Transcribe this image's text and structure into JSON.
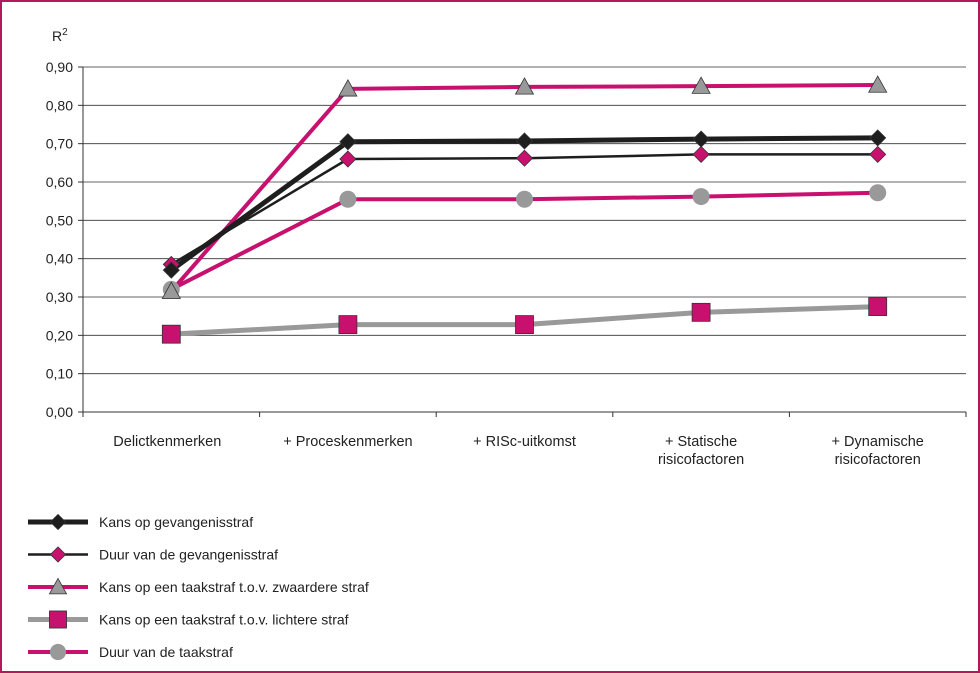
{
  "chart_data": {
    "type": "line",
    "ylabel": "R",
    "ylabel_sup": "2",
    "ylim": [
      0,
      0.9
    ],
    "yticks": [
      "0,00",
      "0,10",
      "0,20",
      "0,30",
      "0,40",
      "0,50",
      "0,60",
      "0,70",
      "0,80",
      "0,90"
    ],
    "categories": [
      [
        "Delictkenmerken"
      ],
      [
        "+ Proceskenmerken"
      ],
      [
        "+ RISc-uitkomst"
      ],
      [
        "+ Statische",
        "risicofactoren"
      ],
      [
        "+ Dynamische",
        "risicofactoren"
      ]
    ],
    "legend_position": "bottom",
    "grid": true,
    "series": [
      {
        "name": "Kans op gevangenisstraf",
        "values": [
          0.37,
          0.705,
          0.707,
          0.712,
          0.715
        ],
        "line_color": "#1e1e1e",
        "marker": "diamond",
        "marker_color": "#1e1e1e",
        "line_width": 5
      },
      {
        "name": "Duur van de gevangenisstraf",
        "values": [
          0.385,
          0.66,
          0.662,
          0.672,
          0.672
        ],
        "line_color": "#1e1e1e",
        "marker": "diamond",
        "marker_color": "#c8106e",
        "line_width": 2.5
      },
      {
        "name": "Kans op een taakstraf t.o.v. zwaardere straf",
        "values": [
          0.315,
          0.843,
          0.848,
          0.85,
          0.853
        ],
        "line_color": "#c8106e",
        "marker": "triangle",
        "marker_color": "#999999",
        "line_width": 4
      },
      {
        "name": "Kans op een taakstraf t.o.v. lichtere straf",
        "values": [
          0.203,
          0.228,
          0.228,
          0.26,
          0.275
        ],
        "line_color": "#999999",
        "marker": "square",
        "marker_color": "#c8106e",
        "line_width": 5
      },
      {
        "name": "Duur van de taakstraf",
        "values": [
          0.32,
          0.555,
          0.555,
          0.562,
          0.572
        ],
        "line_color": "#c8106e",
        "marker": "circle",
        "marker_color": "#999999",
        "line_width": 4
      }
    ]
  }
}
